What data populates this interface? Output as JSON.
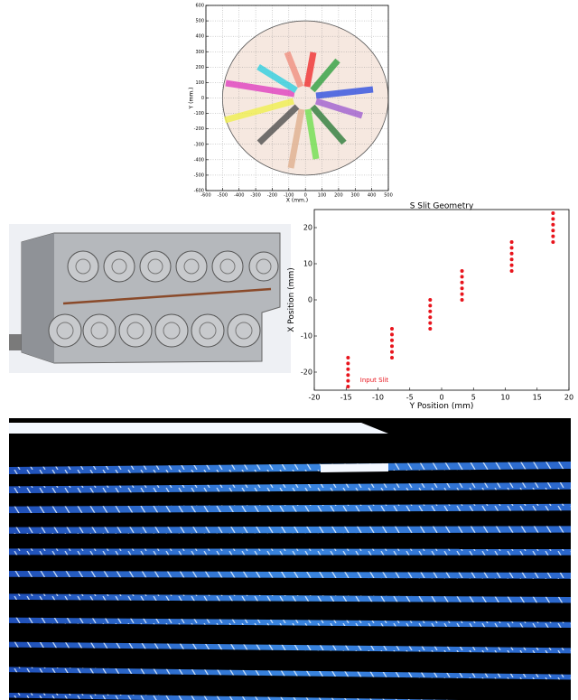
{
  "chart_data": [
    {
      "type": "focal-plane",
      "xlabel": "X (mm.)",
      "ylabel": "Y (mm.)",
      "xlim": [
        -600,
        500
      ],
      "xticks": [
        -600,
        -500,
        -400,
        -300,
        -200,
        -100,
        0,
        100,
        200,
        300,
        400,
        500
      ],
      "ylim": [
        -600,
        600
      ],
      "yticks": [
        -600,
        -500,
        -400,
        -300,
        -200,
        -100,
        0,
        100,
        200,
        300,
        400,
        500,
        600
      ],
      "grid": true
    },
    {
      "type": "scatter",
      "title": "S Slit Geometry",
      "xlabel": "Y Position (mm)",
      "ylabel": "X Position (mm)",
      "annotation": "Input Slit",
      "xlim": [
        -20,
        20
      ],
      "xticks": [
        -20,
        -15,
        -10,
        -5,
        0,
        5,
        10,
        15,
        20
      ],
      "ylim": [
        -25,
        25
      ],
      "yticks": [
        -20,
        -10,
        0,
        10,
        20
      ],
      "series": [
        {
          "color": "#e8141c",
          "x": [
            -14.7,
            -14.7,
            -14.7,
            -14.7,
            -14.7,
            -14.7,
            -7.8,
            -7.8,
            -7.8,
            -7.8,
            -7.8,
            -7.8,
            -1.8,
            -1.8,
            -1.8,
            -1.8,
            -1.8,
            -1.8,
            3.2,
            3.2,
            3.2,
            3.2,
            3.2,
            3.2,
            11,
            11,
            11,
            11,
            11,
            11,
            17.5,
            17.5,
            17.5,
            17.5,
            17.5,
            17.5
          ],
          "values": [
            -16,
            -17.6,
            -19.2,
            -20.8,
            -22.4,
            -24,
            -8,
            -9.6,
            -11.2,
            -12.8,
            -14.4,
            -16,
            0,
            -1.6,
            -3.2,
            -4.8,
            -6.4,
            -8,
            8,
            6.4,
            4.8,
            3.2,
            1.6,
            0,
            16,
            14.4,
            12.8,
            11.2,
            9.6,
            8,
            24,
            22.4,
            20.8,
            19.2,
            17.6,
            16
          ]
        }
      ]
    }
  ]
}
